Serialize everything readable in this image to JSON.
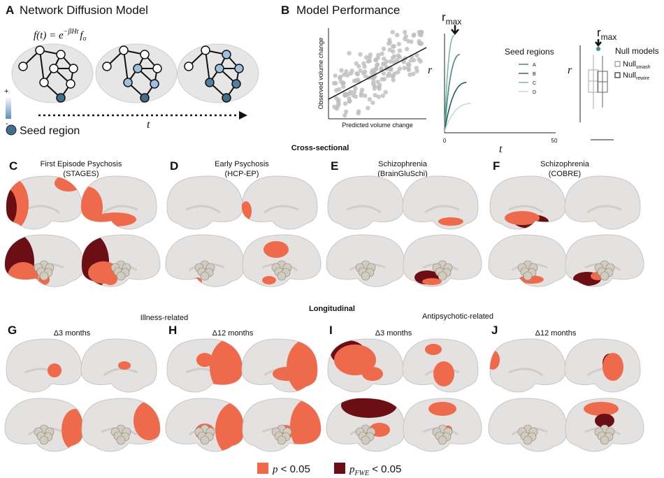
{
  "panel_a": {
    "label": "A",
    "title": "Network Diffusion Model",
    "formula": {
      "lhs": "f(t) = e",
      "exp": "−βHt",
      "f": "f",
      "sub": "o"
    },
    "scale_plus": "+",
    "scale_minus": "-",
    "seed_legend": "Seed region",
    "time_axis": "t"
  },
  "panel_b": {
    "label": "B",
    "title": "Model Performance",
    "scatter": {
      "y_label": "Observed volume change",
      "x_label": "Predicted volume change"
    },
    "curves": {
      "y_label": "r",
      "peak": {
        "base": "r",
        "sub": "max"
      },
      "x_label": "t",
      "x_ticks": [
        "0",
        "50"
      ],
      "legend_title": "Seed regions",
      "legend": [
        "A",
        "B",
        "C",
        "D"
      ]
    },
    "null": {
      "peak": {
        "base": "r",
        "sub": "max"
      },
      "y_label": "r",
      "legend_title": "Null models",
      "legend": [
        {
          "base": "Null",
          "sub": "smash"
        },
        {
          "base": "Null",
          "sub": "rewire"
        }
      ]
    }
  },
  "cross_sectional": {
    "heading": "Cross-sectional",
    "panels": [
      {
        "label": "C",
        "title": "First Episode Psychosis",
        "subtitle": "(STAGES)"
      },
      {
        "label": "D",
        "title": "Early Psychosis",
        "subtitle": "(HCP-EP)"
      },
      {
        "label": "E",
        "title": "Schizophrenia",
        "subtitle": "(BrainGluSchi)"
      },
      {
        "label": "F",
        "title": "Schizophrenia",
        "subtitle": "(COBRE)"
      }
    ]
  },
  "longitudinal": {
    "heading": "Longitudinal",
    "groups": [
      "Illness-related",
      "Antipsychotic-related"
    ],
    "panels": [
      {
        "label": "G",
        "title": "Δ3 months"
      },
      {
        "label": "H",
        "title": "Δ12 months"
      },
      {
        "label": "I",
        "title": "Δ3 months"
      },
      {
        "label": "J",
        "title": "Δ12 months"
      }
    ]
  },
  "legend": [
    {
      "base": "p",
      "rest": " < 0.05"
    },
    {
      "base": "p",
      "sub": "FWE",
      "rest": " < 0.05"
    }
  ]
}
